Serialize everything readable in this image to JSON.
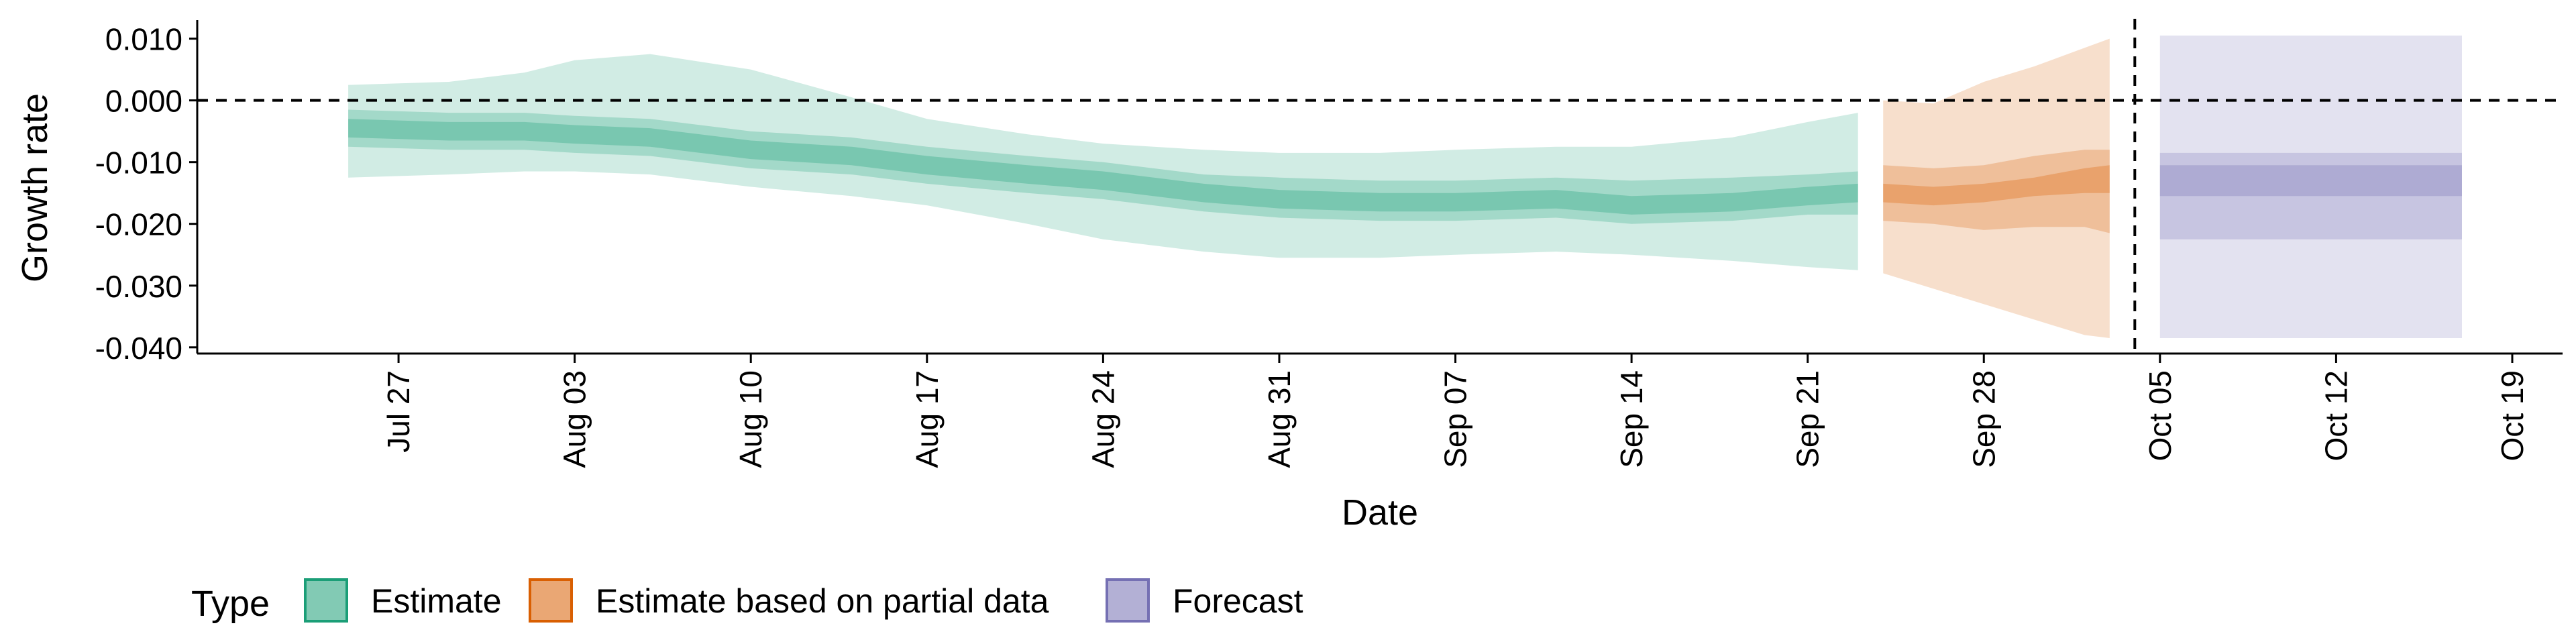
{
  "chart_data": {
    "type": "area",
    "xlabel": "Date",
    "ylabel": "Growth rate",
    "x_ticks": [
      "Jul 27",
      "Aug 03",
      "Aug 10",
      "Aug 17",
      "Aug 24",
      "Aug 31",
      "Sep 07",
      "Sep 14",
      "Sep 21",
      "Sep 28",
      "Oct 05",
      "Oct 12",
      "Oct 19"
    ],
    "y_ticks": [
      "0.010",
      "0.000",
      "-0.010",
      "-0.020",
      "-0.030",
      "-0.040"
    ],
    "ylim": [
      -0.041,
      0.013
    ],
    "xlim": [
      "2020-07-19",
      "2020-10-21"
    ],
    "reference_lines": [
      {
        "orientation": "horizontal",
        "value": 0.0,
        "style": "dashed"
      },
      {
        "orientation": "vertical",
        "value": "2020-10-04",
        "style": "dashed"
      }
    ],
    "legend": {
      "title": "Type",
      "position": "bottom",
      "entries": [
        {
          "label": "Estimate",
          "color": "#1b9e77"
        },
        {
          "label": "Estimate based on partial data",
          "color": "#d95f02"
        },
        {
          "label": "Forecast",
          "color": "#7570b3"
        }
      ]
    },
    "series": [
      {
        "type": "Estimate",
        "color": "#1b9e77",
        "points": [
          {
            "date": "2020-07-25",
            "median": -0.0045,
            "lower_20": -0.006,
            "upper_20": -0.003,
            "lower_50": -0.0075,
            "upper_50": -0.0015,
            "lower_90": -0.0125,
            "upper_90": 0.0025
          },
          {
            "date": "2020-07-29",
            "median": -0.005,
            "lower_20": -0.0065,
            "upper_20": -0.0035,
            "lower_50": -0.008,
            "upper_50": -0.002,
            "lower_90": -0.012,
            "upper_90": 0.003
          },
          {
            "date": "2020-08-01",
            "median": -0.005,
            "lower_20": -0.0065,
            "upper_20": -0.0035,
            "lower_50": -0.008,
            "upper_50": -0.002,
            "lower_90": -0.0115,
            "upper_90": 0.0045
          },
          {
            "date": "2020-08-03",
            "median": -0.0055,
            "lower_20": -0.007,
            "upper_20": -0.004,
            "lower_50": -0.0085,
            "upper_50": -0.0025,
            "lower_90": -0.0115,
            "upper_90": 0.0065
          },
          {
            "date": "2020-08-06",
            "median": -0.006,
            "lower_20": -0.0075,
            "upper_20": -0.0045,
            "lower_50": -0.009,
            "upper_50": -0.003,
            "lower_90": -0.012,
            "upper_90": 0.0075
          },
          {
            "date": "2020-08-10",
            "median": -0.008,
            "lower_20": -0.0095,
            "upper_20": -0.0065,
            "lower_50": -0.011,
            "upper_50": -0.005,
            "lower_90": -0.014,
            "upper_90": 0.005
          },
          {
            "date": "2020-08-14",
            "median": -0.009,
            "lower_20": -0.0105,
            "upper_20": -0.0075,
            "lower_50": -0.012,
            "upper_50": -0.006,
            "lower_90": -0.0155,
            "upper_90": 0.0005
          },
          {
            "date": "2020-08-17",
            "median": -0.0105,
            "lower_20": -0.012,
            "upper_20": -0.009,
            "lower_50": -0.0135,
            "upper_50": -0.0075,
            "lower_90": -0.017,
            "upper_90": -0.003
          },
          {
            "date": "2020-08-21",
            "median": -0.012,
            "lower_20": -0.0135,
            "upper_20": -0.0105,
            "lower_50": -0.015,
            "upper_50": -0.009,
            "lower_90": -0.02,
            "upper_90": -0.0055
          },
          {
            "date": "2020-08-24",
            "median": -0.013,
            "lower_20": -0.0145,
            "upper_20": -0.0115,
            "lower_50": -0.016,
            "upper_50": -0.01,
            "lower_90": -0.0225,
            "upper_90": -0.007
          },
          {
            "date": "2020-08-28",
            "median": -0.015,
            "lower_20": -0.0165,
            "upper_20": -0.0135,
            "lower_50": -0.018,
            "upper_50": -0.012,
            "lower_90": -0.0245,
            "upper_90": -0.008
          },
          {
            "date": "2020-08-31",
            "median": -0.016,
            "lower_20": -0.0175,
            "upper_20": -0.0145,
            "lower_50": -0.019,
            "upper_50": -0.0125,
            "lower_90": -0.0255,
            "upper_90": -0.0085
          },
          {
            "date": "2020-09-04",
            "median": -0.0165,
            "lower_20": -0.018,
            "upper_20": -0.015,
            "lower_50": -0.0195,
            "upper_50": -0.013,
            "lower_90": -0.0255,
            "upper_90": -0.0085
          },
          {
            "date": "2020-09-07",
            "median": -0.0165,
            "lower_20": -0.018,
            "upper_20": -0.015,
            "lower_50": -0.0195,
            "upper_50": -0.013,
            "lower_90": -0.025,
            "upper_90": -0.008
          },
          {
            "date": "2020-09-11",
            "median": -0.016,
            "lower_20": -0.0175,
            "upper_20": -0.0145,
            "lower_50": -0.019,
            "upper_50": -0.0125,
            "lower_90": -0.0245,
            "upper_90": -0.0075
          },
          {
            "date": "2020-09-14",
            "median": -0.017,
            "lower_20": -0.0185,
            "upper_20": -0.0155,
            "lower_50": -0.02,
            "upper_50": -0.013,
            "lower_90": -0.025,
            "upper_90": -0.0075
          },
          {
            "date": "2020-09-18",
            "median": -0.0165,
            "lower_20": -0.018,
            "upper_20": -0.015,
            "lower_50": -0.0195,
            "upper_50": -0.0125,
            "lower_90": -0.026,
            "upper_90": -0.006
          },
          {
            "date": "2020-09-21",
            "median": -0.0155,
            "lower_20": -0.017,
            "upper_20": -0.014,
            "lower_50": -0.0185,
            "upper_50": -0.012,
            "lower_90": -0.027,
            "upper_90": -0.0035
          },
          {
            "date": "2020-09-23",
            "median": -0.015,
            "lower_20": -0.0165,
            "upper_20": -0.0135,
            "lower_50": -0.0185,
            "upper_50": -0.0115,
            "lower_90": -0.0275,
            "upper_90": -0.002
          }
        ]
      },
      {
        "type": "Estimate based on partial data",
        "color": "#d95f02",
        "points": [
          {
            "date": "2020-09-24",
            "median": -0.015,
            "lower_20": -0.0165,
            "upper_20": -0.0135,
            "lower_50": -0.0195,
            "upper_50": -0.0105,
            "lower_90": -0.028,
            "upper_90": 0.0
          },
          {
            "date": "2020-09-26",
            "median": -0.0155,
            "lower_20": -0.017,
            "upper_20": -0.014,
            "lower_50": -0.02,
            "upper_50": -0.011,
            "lower_90": -0.0305,
            "upper_90": -0.0005
          },
          {
            "date": "2020-09-28",
            "median": -0.015,
            "lower_20": -0.0165,
            "upper_20": -0.0135,
            "lower_50": -0.021,
            "upper_50": -0.0105,
            "lower_90": -0.033,
            "upper_90": 0.003
          },
          {
            "date": "2020-09-30",
            "median": -0.014,
            "lower_20": -0.0155,
            "upper_20": -0.0125,
            "lower_50": -0.0205,
            "upper_50": -0.009,
            "lower_90": -0.0355,
            "upper_90": 0.0055
          },
          {
            "date": "2020-10-02",
            "median": -0.013,
            "lower_20": -0.015,
            "upper_20": -0.011,
            "lower_50": -0.0205,
            "upper_50": -0.008,
            "lower_90": -0.038,
            "upper_90": 0.0085
          },
          {
            "date": "2020-10-03",
            "median": -0.0125,
            "lower_20": -0.015,
            "upper_20": -0.0105,
            "lower_50": -0.0215,
            "upper_50": -0.008,
            "lower_90": -0.0385,
            "upper_90": 0.01
          }
        ]
      },
      {
        "type": "Forecast",
        "color": "#7570b3",
        "points": [
          {
            "date": "2020-10-05",
            "median": -0.0125,
            "lower_20": -0.0155,
            "upper_20": -0.0105,
            "lower_50": -0.0225,
            "upper_50": -0.0085,
            "lower_90": -0.0385,
            "upper_90": 0.0105
          },
          {
            "date": "2020-10-17",
            "median": -0.0125,
            "lower_20": -0.0155,
            "upper_20": -0.0105,
            "lower_50": -0.0225,
            "upper_50": -0.0085,
            "lower_90": -0.0385,
            "upper_90": 0.0105
          }
        ]
      }
    ]
  }
}
